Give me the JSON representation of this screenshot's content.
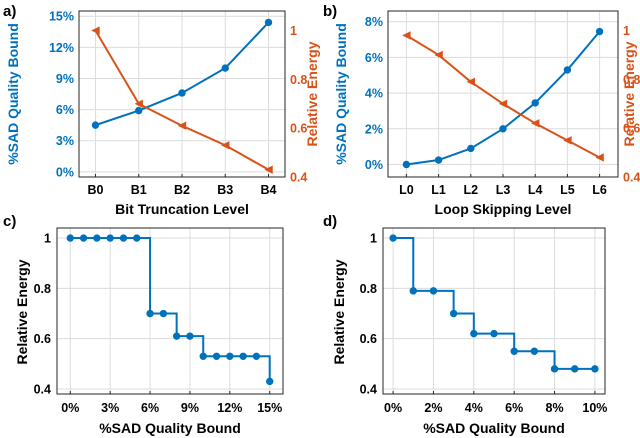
{
  "colors": {
    "blue": "#0072bd",
    "orange": "#d95319",
    "grid": "#dcdcdc",
    "text": "#000000"
  },
  "chart_data": [
    {
      "panel": "a)",
      "type": "line",
      "categories": [
        "B0",
        "B1",
        "B2",
        "B3",
        "B4"
      ],
      "xlabel": "Bit Truncation Level",
      "series": [
        {
          "name": "%SAD Quality Bound",
          "axis": "left",
          "color": "#0072bd",
          "marker": "circle",
          "values": [
            4.5,
            5.9,
            7.6,
            10.0,
            14.4
          ]
        },
        {
          "name": "Relative Energy",
          "axis": "right",
          "color": "#d95319",
          "marker": "triangle-left",
          "values": [
            1.0,
            0.7,
            0.61,
            0.53,
            0.43
          ]
        }
      ],
      "left_axis": {
        "label": "%SAD Quality Bound",
        "ylim": [
          -0.5,
          15.5
        ],
        "ticks": [
          0,
          3,
          6,
          9,
          12,
          15
        ],
        "tick_labels": [
          "0%",
          "3%",
          "6%",
          "9%",
          "12%",
          "15%"
        ]
      },
      "right_axis": {
        "label": "Relative Energy",
        "ylim": [
          0.4,
          1.08
        ],
        "ticks": [
          0.4,
          0.6,
          0.8,
          1.0
        ],
        "tick_labels": [
          "0.4",
          "0.6",
          "0.8",
          "1"
        ]
      },
      "grid": true
    },
    {
      "panel": "b)",
      "type": "line",
      "categories": [
        "L0",
        "L1",
        "L2",
        "L3",
        "L4",
        "L5",
        "L6"
      ],
      "xlabel": "Loop Skipping Level",
      "series": [
        {
          "name": "%SAD Quality Bound",
          "axis": "left",
          "color": "#0072bd",
          "marker": "circle",
          "values": [
            0.0,
            0.25,
            0.9,
            2.0,
            3.45,
            5.3,
            7.45
          ]
        },
        {
          "name": "Relative Energy",
          "axis": "right",
          "color": "#d95319",
          "marker": "triangle-left",
          "values": [
            0.98,
            0.9,
            0.79,
            0.7,
            0.62,
            0.55,
            0.48
          ]
        }
      ],
      "left_axis": {
        "label": "%SAD Quality Bound",
        "ylim": [
          -0.7,
          8.6
        ],
        "ticks": [
          0,
          2,
          4,
          6,
          8
        ],
        "tick_labels": [
          "0%",
          "2%",
          "4%",
          "6%",
          "8%"
        ]
      },
      "right_axis": {
        "label": "Relative Energy",
        "ylim": [
          0.4,
          1.08
        ],
        "ticks": [
          0.4,
          0.6,
          0.8,
          1.0
        ],
        "tick_labels": [
          "0.4",
          "0.6",
          "0.8",
          "1"
        ]
      },
      "grid": true
    },
    {
      "panel": "c)",
      "type": "line",
      "xlabel": "%SAD Quality Bound",
      "ylabel": "Relative Energy",
      "xlim": [
        -1,
        16
      ],
      "ylim": [
        0.38,
        1.04
      ],
      "xticks": [
        0,
        3,
        6,
        9,
        12,
        15
      ],
      "xtick_labels": [
        "0%",
        "3%",
        "6%",
        "9%",
        "12%",
        "15%"
      ],
      "yticks": [
        0.4,
        0.6,
        0.8,
        1.0
      ],
      "ytick_labels": [
        "0.4",
        "0.6",
        "0.8",
        "1"
      ],
      "series": [
        {
          "name": "Relative Energy",
          "color": "#0072bd",
          "marker": "circle",
          "step": true,
          "x": [
            0,
            1,
            2,
            3,
            4,
            5,
            6,
            7,
            8,
            9,
            10,
            11,
            12,
            13,
            14,
            15
          ],
          "values": [
            1,
            1,
            1,
            1,
            1,
            1,
            0.7,
            0.7,
            0.61,
            0.61,
            0.53,
            0.53,
            0.53,
            0.53,
            0.53,
            0.43
          ]
        }
      ],
      "grid": true
    },
    {
      "panel": "d)",
      "type": "line",
      "xlabel": "%SAD Quality Bound",
      "ylabel": "Relative Energy",
      "xlim": [
        -0.5,
        10.5
      ],
      "ylim": [
        0.38,
        1.04
      ],
      "xticks": [
        0,
        2,
        4,
        6,
        8,
        10
      ],
      "xtick_labels": [
        "0%",
        "2%",
        "4%",
        "6%",
        "8%",
        "10%"
      ],
      "yticks": [
        0.4,
        0.6,
        0.8,
        1.0
      ],
      "ytick_labels": [
        "0.4",
        "0.6",
        "0.8",
        "1"
      ],
      "series": [
        {
          "name": "Relative Energy",
          "color": "#0072bd",
          "marker": "circle",
          "step": true,
          "x": [
            0,
            1,
            2,
            3,
            4,
            5,
            6,
            7,
            8,
            9,
            10
          ],
          "values": [
            1.0,
            0.79,
            0.79,
            0.7,
            0.62,
            0.62,
            0.55,
            0.55,
            0.48,
            0.48,
            0.48
          ]
        }
      ],
      "grid": true
    }
  ]
}
